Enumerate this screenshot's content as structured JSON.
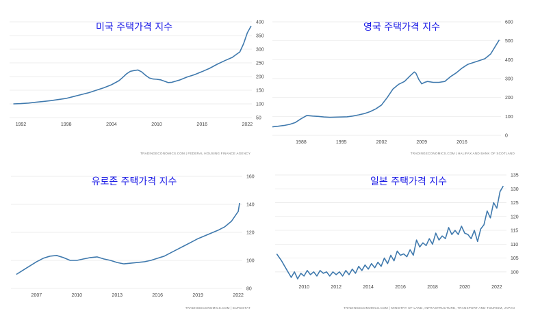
{
  "colors": {
    "line": "#3f79ad",
    "title": "#1a1ae6",
    "grid": "#e6e6e6"
  },
  "chart_data": [
    {
      "type": "line",
      "title": "미국 주택가격 지수",
      "source": "TRADINGECONOMICS.COM  |  FEDERAL HOUSING FINANCE AGENCY",
      "xlim": [
        1990.5,
        2022.6
      ],
      "ylim": [
        50,
        400
      ],
      "xticks": [
        {
          "v": 1992,
          "label": "1992"
        },
        {
          "v": 1998,
          "label": "1998"
        },
        {
          "v": 2004,
          "label": "2004"
        },
        {
          "v": 2010,
          "label": "2010"
        },
        {
          "v": 2016,
          "label": "2016"
        },
        {
          "v": 2022,
          "label": "2022"
        }
      ],
      "yticks": [
        {
          "v": 50,
          "label": "50"
        },
        {
          "v": 100,
          "label": "100"
        },
        {
          "v": 150,
          "label": "150"
        },
        {
          "v": 200,
          "label": "200"
        },
        {
          "v": 250,
          "label": "250"
        },
        {
          "v": 300,
          "label": "300"
        },
        {
          "v": 350,
          "label": "350"
        },
        {
          "v": 400,
          "label": "400"
        }
      ],
      "x": [
        1991,
        1992,
        1993,
        1994,
        1995,
        1996,
        1997,
        1998,
        1999,
        2000,
        2001,
        2002,
        2003,
        2004,
        2005,
        2005.5,
        2006,
        2006.5,
        2007,
        2007.5,
        2008,
        2008.5,
        2009,
        2009.5,
        2010,
        2010.5,
        2011,
        2011.5,
        2012,
        2013,
        2014,
        2015,
        2016,
        2017,
        2018,
        2019,
        2020,
        2020.5,
        2021,
        2021.5,
        2022,
        2022.5
      ],
      "y": [
        100,
        101,
        103,
        106,
        109,
        112,
        116,
        120,
        127,
        134,
        141,
        150,
        159,
        170,
        185,
        197,
        210,
        219,
        222,
        224,
        217,
        205,
        195,
        191,
        190,
        188,
        183,
        178,
        179,
        187,
        198,
        207,
        218,
        230,
        245,
        258,
        270,
        280,
        290,
        320,
        360,
        385
      ]
    },
    {
      "type": "line",
      "title": "영국 주택가격 지수",
      "source": "TRADINGECONOMICS.COM  |  HALIFAX AND BANK OF SCOTLAND",
      "xlim": [
        1983,
        2022.8
      ],
      "ylim": [
        0,
        600
      ],
      "xticks": [
        {
          "v": 1988,
          "label": "1988"
        },
        {
          "v": 1995,
          "label": "1995"
        },
        {
          "v": 2002,
          "label": "2002"
        },
        {
          "v": 2009,
          "label": "2009"
        },
        {
          "v": 2016,
          "label": "2016"
        }
      ],
      "yticks": [
        {
          "v": 0,
          "label": "0"
        },
        {
          "v": 100,
          "label": "100"
        },
        {
          "v": 200,
          "label": "200"
        },
        {
          "v": 300,
          "label": "300"
        },
        {
          "v": 400,
          "label": "400"
        },
        {
          "v": 500,
          "label": "500"
        },
        {
          "v": 600,
          "label": "600"
        }
      ],
      "x": [
        1983,
        1984,
        1985,
        1986,
        1987,
        1988,
        1989,
        1990,
        1991,
        1992,
        1993,
        1994,
        1995,
        1996,
        1997,
        1998,
        1999,
        2000,
        2001,
        2002,
        2003,
        2004,
        2005,
        2006,
        2007,
        2007.7,
        2008,
        2008.5,
        2009,
        2009.5,
        2010,
        2011,
        2012,
        2013,
        2014,
        2015,
        2016,
        2017,
        2018,
        2019,
        2020,
        2021,
        2022,
        2022.5
      ],
      "y": [
        45,
        48,
        52,
        58,
        68,
        88,
        105,
        102,
        100,
        97,
        95,
        96,
        97,
        98,
        102,
        108,
        115,
        125,
        140,
        160,
        200,
        245,
        270,
        285,
        315,
        335,
        328,
        295,
        272,
        280,
        285,
        280,
        280,
        285,
        310,
        330,
        355,
        375,
        385,
        395,
        405,
        430,
        480,
        505
      ]
    },
    {
      "type": "line",
      "title": "유로존 주택가격 지수",
      "source": "TRADINGECONOMICS.COM  |  EUROSTAT",
      "xlim": [
        2005.1,
        2022.3
      ],
      "ylim": [
        80,
        160
      ],
      "xticks": [
        {
          "v": 2007,
          "label": "2007"
        },
        {
          "v": 2010,
          "label": "2010"
        },
        {
          "v": 2013,
          "label": "2013"
        },
        {
          "v": 2016,
          "label": "2016"
        },
        {
          "v": 2019,
          "label": "2019"
        },
        {
          "v": 2022,
          "label": "2022"
        }
      ],
      "yticks": [
        {
          "v": 80,
          "label": "80"
        },
        {
          "v": 100,
          "label": "100"
        },
        {
          "v": 120,
          "label": "120"
        },
        {
          "v": 140,
          "label": "140"
        },
        {
          "v": 160,
          "label": "160"
        }
      ],
      "x": [
        2005.5,
        2006,
        2006.5,
        2007,
        2007.5,
        2008,
        2008.5,
        2009,
        2009.5,
        2010,
        2010.5,
        2011,
        2011.5,
        2012,
        2012.5,
        2013,
        2013.5,
        2014,
        2014.5,
        2015,
        2015.5,
        2016,
        2016.5,
        2017,
        2017.5,
        2018,
        2018.5,
        2019,
        2019.5,
        2020,
        2020.5,
        2021,
        2021.5,
        2022,
        2022.1
      ],
      "y": [
        90,
        93,
        96,
        99,
        101.5,
        103,
        103.5,
        102,
        100,
        100,
        101,
        102,
        102.5,
        101,
        100,
        98.5,
        97.5,
        98,
        98.5,
        99,
        100,
        101.5,
        103,
        105.5,
        108,
        110.5,
        113,
        115.5,
        117.5,
        119.5,
        121.5,
        124,
        128,
        135,
        141
      ]
    },
    {
      "type": "line",
      "title": "일본 주택가격 지수",
      "source": "TRADINGECONOMICS.COM  |  MINISTRY OF LAND, INFRASTRUCTURE, TRANSPORT AND TOURISM, JAPAN",
      "xlim": [
        2008.2,
        2022.6
      ],
      "ylim": [
        97,
        135
      ],
      "xticks": [
        {
          "v": 2010,
          "label": "2010"
        },
        {
          "v": 2012,
          "label": "2012"
        },
        {
          "v": 2014,
          "label": "2014"
        },
        {
          "v": 2016,
          "label": "2016"
        },
        {
          "v": 2018,
          "label": "2018"
        },
        {
          "v": 2020,
          "label": "2020"
        },
        {
          "v": 2022,
          "label": "2022"
        }
      ],
      "yticks": [
        {
          "v": 100,
          "label": "100"
        },
        {
          "v": 105,
          "label": "105"
        },
        {
          "v": 110,
          "label": "110"
        },
        {
          "v": 115,
          "label": "115"
        },
        {
          "v": 120,
          "label": "120"
        },
        {
          "v": 125,
          "label": "125"
        },
        {
          "v": 130,
          "label": "130"
        },
        {
          "v": 135,
          "label": "135"
        }
      ],
      "x": [
        2008.3,
        2008.6,
        2008.9,
        2009.2,
        2009.4,
        2009.6,
        2009.8,
        2010,
        2010.2,
        2010.4,
        2010.6,
        2010.8,
        2011,
        2011.2,
        2011.4,
        2011.6,
        2011.8,
        2012,
        2012.2,
        2012.4,
        2012.6,
        2012.8,
        2013,
        2013.2,
        2013.4,
        2013.6,
        2013.8,
        2014,
        2014.2,
        2014.4,
        2014.6,
        2014.8,
        2015,
        2015.2,
        2015.4,
        2015.6,
        2015.8,
        2016,
        2016.2,
        2016.4,
        2016.6,
        2016.8,
        2017,
        2017.2,
        2017.4,
        2017.6,
        2017.8,
        2018,
        2018.2,
        2018.4,
        2018.6,
        2018.8,
        2019,
        2019.2,
        2019.4,
        2019.6,
        2019.8,
        2020,
        2020.2,
        2020.4,
        2020.6,
        2020.8,
        2021,
        2021.2,
        2021.4,
        2021.6,
        2021.8,
        2022,
        2022.2,
        2022.4
      ],
      "y": [
        106.5,
        104,
        101,
        98,
        100,
        97.5,
        99.5,
        98.5,
        100.5,
        99,
        100,
        98.5,
        100.5,
        99.5,
        100,
        98.5,
        100,
        99,
        100,
        98.5,
        100.5,
        99,
        101,
        99.5,
        102,
        100.5,
        102.5,
        101,
        103,
        101.5,
        103.5,
        102,
        105,
        103,
        106,
        104,
        107.5,
        106,
        106.5,
        105.5,
        108,
        106,
        111.5,
        109,
        110.5,
        109.5,
        112,
        110,
        114,
        111.5,
        113,
        112,
        116,
        113.5,
        115,
        113.5,
        116.5,
        114,
        113.5,
        112,
        115,
        111,
        115.5,
        117,
        122,
        119.5,
        125,
        123,
        129,
        131
      ]
    }
  ]
}
